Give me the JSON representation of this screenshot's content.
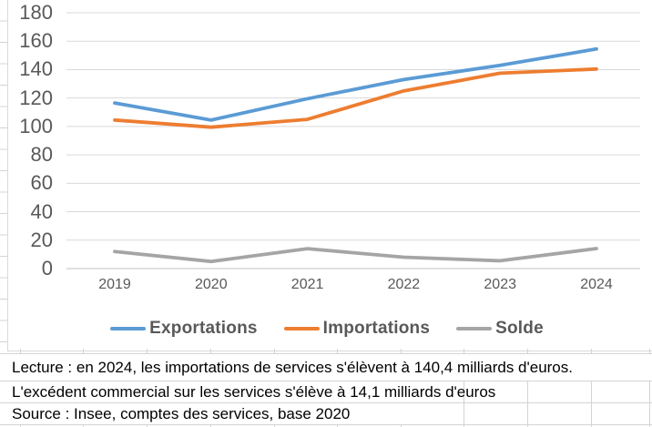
{
  "chart_data": {
    "type": "line",
    "title": "",
    "categories": [
      "2019",
      "2020",
      "2021",
      "2022",
      "2023",
      "2024"
    ],
    "series": [
      {
        "name": "Exportations",
        "color": "#5B9BD5",
        "values": [
          116.5,
          104.5,
          119.5,
          133.0,
          143.0,
          154.5
        ]
      },
      {
        "name": "Importations",
        "color": "#ED7D31",
        "values": [
          104.5,
          99.5,
          105.0,
          125.0,
          137.5,
          140.4
        ]
      },
      {
        "name": "Solde",
        "color": "#A5A5A5",
        "values": [
          12.0,
          5.0,
          14.0,
          8.0,
          5.5,
          14.1
        ]
      }
    ],
    "ylim": [
      0,
      180
    ],
    "ytick_step": 20,
    "yticks": [
      "0",
      "20",
      "40",
      "60",
      "80",
      "100",
      "120",
      "140",
      "160",
      "180"
    ],
    "grid": true,
    "legend_position": "bottom",
    "axis_label_color": "#595959",
    "gridline_color": "#D9D9D9"
  },
  "notes": {
    "line1": "Lecture : en 2024, les importations de services s'élèvent à 140,4 milliards d'euros.",
    "line2": "L'excédent commercial sur les services s'élève à 14,1 milliards d'euros",
    "line3": "Source : Insee, comptes des services, base 2020"
  },
  "colors": {
    "exportations": "#5B9BD5",
    "importations": "#ED7D31",
    "solde": "#A5A5A5",
    "chart_gridline": "#D9D9D9",
    "sheet_gridline": "#D4D4D4",
    "axis_text": "#595959"
  }
}
